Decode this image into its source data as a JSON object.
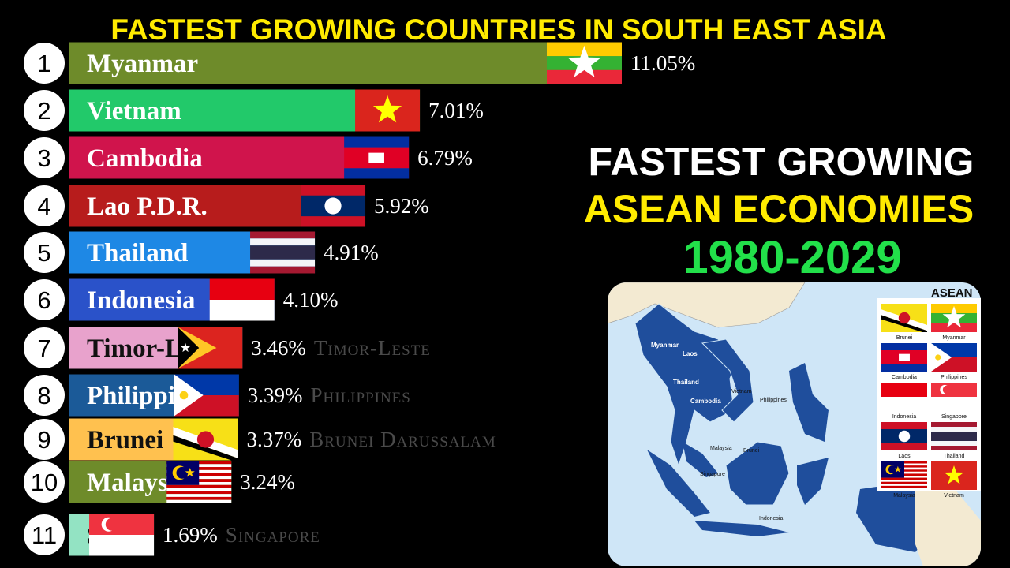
{
  "chart_data": {
    "type": "bar",
    "title": "FASTEST GROWING COUNTRIES IN SOUTH EAST ASIA",
    "ranks": [
      1,
      2,
      3,
      4,
      5,
      6,
      7,
      8,
      9,
      10,
      11
    ],
    "categories": [
      "Myanmar",
      "Vietnam",
      "Cambodia",
      "Lao P.D.R.",
      "Thailand",
      "Indonesia",
      "Timor-Leste",
      "Philippines",
      "Brunei",
      "Malaysia",
      "Singapore"
    ],
    "values": [
      11.05,
      7.01,
      6.79,
      5.92,
      4.91,
      4.1,
      3.46,
      3.39,
      3.37,
      3.24,
      1.69
    ],
    "value_labels": [
      "11.05%",
      "7.01%",
      "6.79%",
      "5.92%",
      "4.91%",
      "4.10%",
      "3.46%",
      "3.39%",
      "3.37%",
      "3.24%",
      "1.69%"
    ],
    "side_labels": [
      null,
      null,
      null,
      null,
      null,
      null,
      "Timor-Leste",
      "Philippines",
      "Brunei Darussalam",
      null,
      "Singapore"
    ],
    "colors": [
      "#6e8b2a",
      "#22c96a",
      "#d0144c",
      "#b71c1c",
      "#1e88e5",
      "#2a52c9",
      "#e8a2cc",
      "#1b5a98",
      "#ffc14f",
      "#6e8b2a",
      "#93e3c3"
    ]
  },
  "overlay": {
    "line1": "FASTEST GROWING",
    "line2": "ASEAN ECONOMIES",
    "line3": "1980-2029"
  },
  "map": {
    "title": "ASEAN",
    "labels": [
      "Myanmar",
      "Laos",
      "Thailand",
      "Cambodia",
      "Vietnam",
      "Philippines",
      "Malaysia",
      "Brunei",
      "Singapore",
      "Indonesia"
    ],
    "flag_labels": [
      "Brunei",
      "Myanmar",
      "Cambodia",
      "Philippines",
      "Indonesia",
      "Singapore",
      "Laos",
      "Thailand",
      "Malaysia",
      "Vietnam"
    ]
  }
}
